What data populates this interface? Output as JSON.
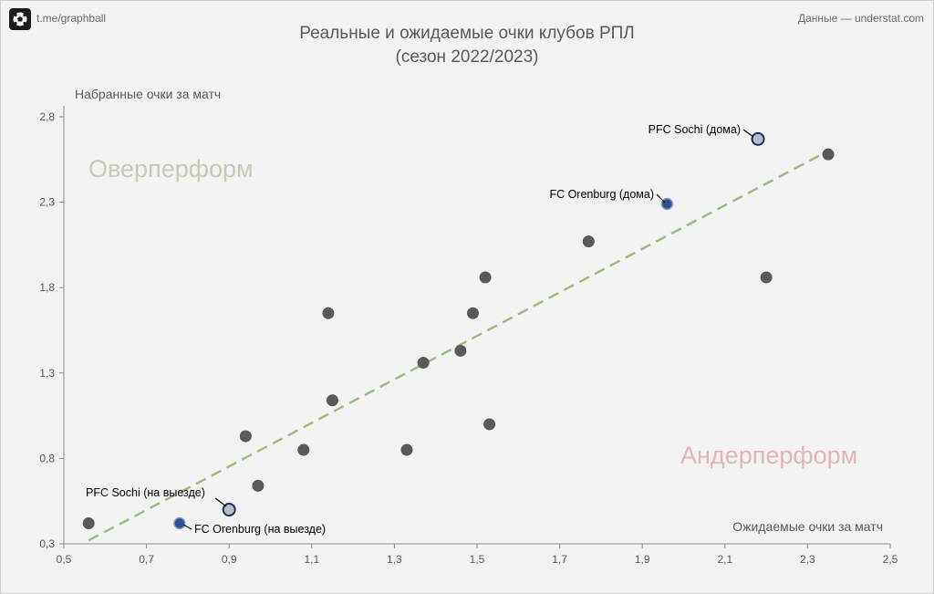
{
  "header": {
    "channel": "t.me/graphball",
    "source": "Данные — understat.com",
    "title_line1": "Реальные и ожидаемые очки клубов РПЛ",
    "title_line2": "(сезон 2022/2023)"
  },
  "zones": {
    "overperform": "Оверперформ",
    "underperform": "Андерперформ"
  },
  "colors": {
    "point": "#595959",
    "highlight_fill": "#2f4f99",
    "highlight_light": "#b8bcc8",
    "trend": "#9dbb86",
    "overperform": "#c6ccb4",
    "underperform": "#e0b7b7"
  },
  "chart_data": {
    "type": "scatter",
    "xlabel": "Ожидаемые очки за матч",
    "ylabel": "Набранные очки за матч",
    "xlim": [
      0.5,
      2.5
    ],
    "ylim": [
      0.3,
      2.85
    ],
    "xticks": [
      "0,5",
      "0,7",
      "0,9",
      "1,1",
      "1,3",
      "1,5",
      "1,7",
      "1,9",
      "2,1",
      "2,3",
      "2,5"
    ],
    "yticks": [
      "0,3",
      "0,8",
      "1,3",
      "1,8",
      "2,3",
      "2,8"
    ],
    "trendline": {
      "x": [
        0.56,
        2.35
      ],
      "y": [
        0.32,
        2.6
      ]
    },
    "points": [
      {
        "x": 0.56,
        "y": 0.42
      },
      {
        "x": 0.78,
        "y": 0.42,
        "highlight": "dark",
        "label": "FC Orenburg (на выезде)"
      },
      {
        "x": 0.9,
        "y": 0.5,
        "highlight": "light",
        "label": "PFC Sochi (на выезде)"
      },
      {
        "x": 0.94,
        "y": 0.93
      },
      {
        "x": 0.97,
        "y": 0.64
      },
      {
        "x": 1.08,
        "y": 0.85
      },
      {
        "x": 1.14,
        "y": 1.65
      },
      {
        "x": 1.15,
        "y": 1.14
      },
      {
        "x": 1.33,
        "y": 0.85
      },
      {
        "x": 1.37,
        "y": 1.36
      },
      {
        "x": 1.46,
        "y": 1.43
      },
      {
        "x": 1.49,
        "y": 1.65
      },
      {
        "x": 1.52,
        "y": 1.86
      },
      {
        "x": 1.53,
        "y": 1.0
      },
      {
        "x": 1.77,
        "y": 2.07
      },
      {
        "x": 1.96,
        "y": 2.29,
        "highlight": "dark",
        "label": "FC Orenburg (дома)"
      },
      {
        "x": 2.18,
        "y": 2.67,
        "highlight": "light",
        "label": "PFC Sochi (дома)"
      },
      {
        "x": 2.2,
        "y": 1.86
      },
      {
        "x": 2.35,
        "y": 2.58
      }
    ]
  }
}
